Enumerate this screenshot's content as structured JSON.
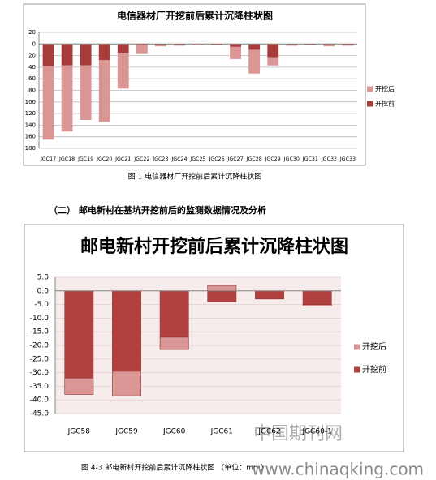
{
  "chart_data": [
    {
      "type": "bar",
      "title": "电信器材厂开挖前后累计沉降柱状图",
      "categories": [
        "JGC17",
        "JGC18",
        "JGC19",
        "JGC20",
        "JGC21",
        "JGC22",
        "JGC23",
        "JGC24",
        "JGC25",
        "JGC26",
        "JGC27",
        "JGC28",
        "JGC29",
        "JGC30",
        "JGC31",
        "JGC32",
        "JGC33"
      ],
      "series": [
        {
          "name": "开挖后",
          "color": "#d99694",
          "values": [
            127,
            114,
            94,
            106,
            62,
            14,
            3,
            2,
            2,
            1,
            21,
            41,
            14,
            2,
            1,
            2,
            2
          ]
        },
        {
          "name": "开挖前",
          "color": "#a83c3b",
          "values": [
            38,
            37,
            37,
            28,
            15,
            2,
            1,
            1,
            0,
            1,
            5,
            10,
            23,
            1,
            1,
            2,
            1
          ]
        }
      ],
      "stacked": true,
      "y_inverted": true,
      "ylim": [
        -20,
        180
      ],
      "yticks": [
        {
          "value": -20,
          "label": "20"
        },
        0,
        20,
        40,
        60,
        80,
        100,
        120,
        140,
        160,
        180
      ],
      "grid": true,
      "legend": "right"
    },
    {
      "type": "bar",
      "title": "邮电新村开挖前后累计沉降柱状图",
      "categories": [
        "JGC58",
        "JGC59",
        "JGC60",
        "JGC61",
        "JGC62",
        "JGC60-1"
      ],
      "series": [
        {
          "name": "开挖后",
          "color": "#d99694",
          "values": [
            -6,
            -9,
            -4.5,
            2,
            0,
            -0.5
          ]
        },
        {
          "name": "开挖前",
          "color": "#b0413e",
          "values": [
            -32,
            -29.5,
            -17,
            -4,
            -3,
            -5
          ]
        }
      ],
      "stacked": true,
      "y_inverted": false,
      "ylim": [
        -45,
        5
      ],
      "yticks": [
        {
          "value": 5,
          "label": "5.0"
        },
        {
          "value": 0,
          "label": "0.0"
        },
        {
          "value": -5,
          "label": "-5.0"
        },
        {
          "value": -10,
          "label": "-10.0"
        },
        {
          "value": -15,
          "label": "-15.0"
        },
        {
          "value": -20,
          "label": "-20.0"
        },
        {
          "value": -25,
          "label": "-25.0"
        },
        {
          "value": -30,
          "label": "-30.0"
        },
        {
          "value": -35,
          "label": "-35.0"
        },
        {
          "value": -40,
          "label": "-40.0"
        },
        {
          "value": -45,
          "label": "-45.0"
        }
      ],
      "grid": true,
      "legend": "right"
    }
  ],
  "caption_1": "图 1  电信器材厂开挖前后累计沉降柱状图",
  "heading": "（二） 邮电新村在基坑开挖前后的监测数据情况及分析",
  "caption_2": "图 4-3   邮电新村开挖前后累计沉降柱状图   （单位：mm）",
  "watermark": "中国期刊网",
  "watermark_url": "www.chinaqking.com"
}
